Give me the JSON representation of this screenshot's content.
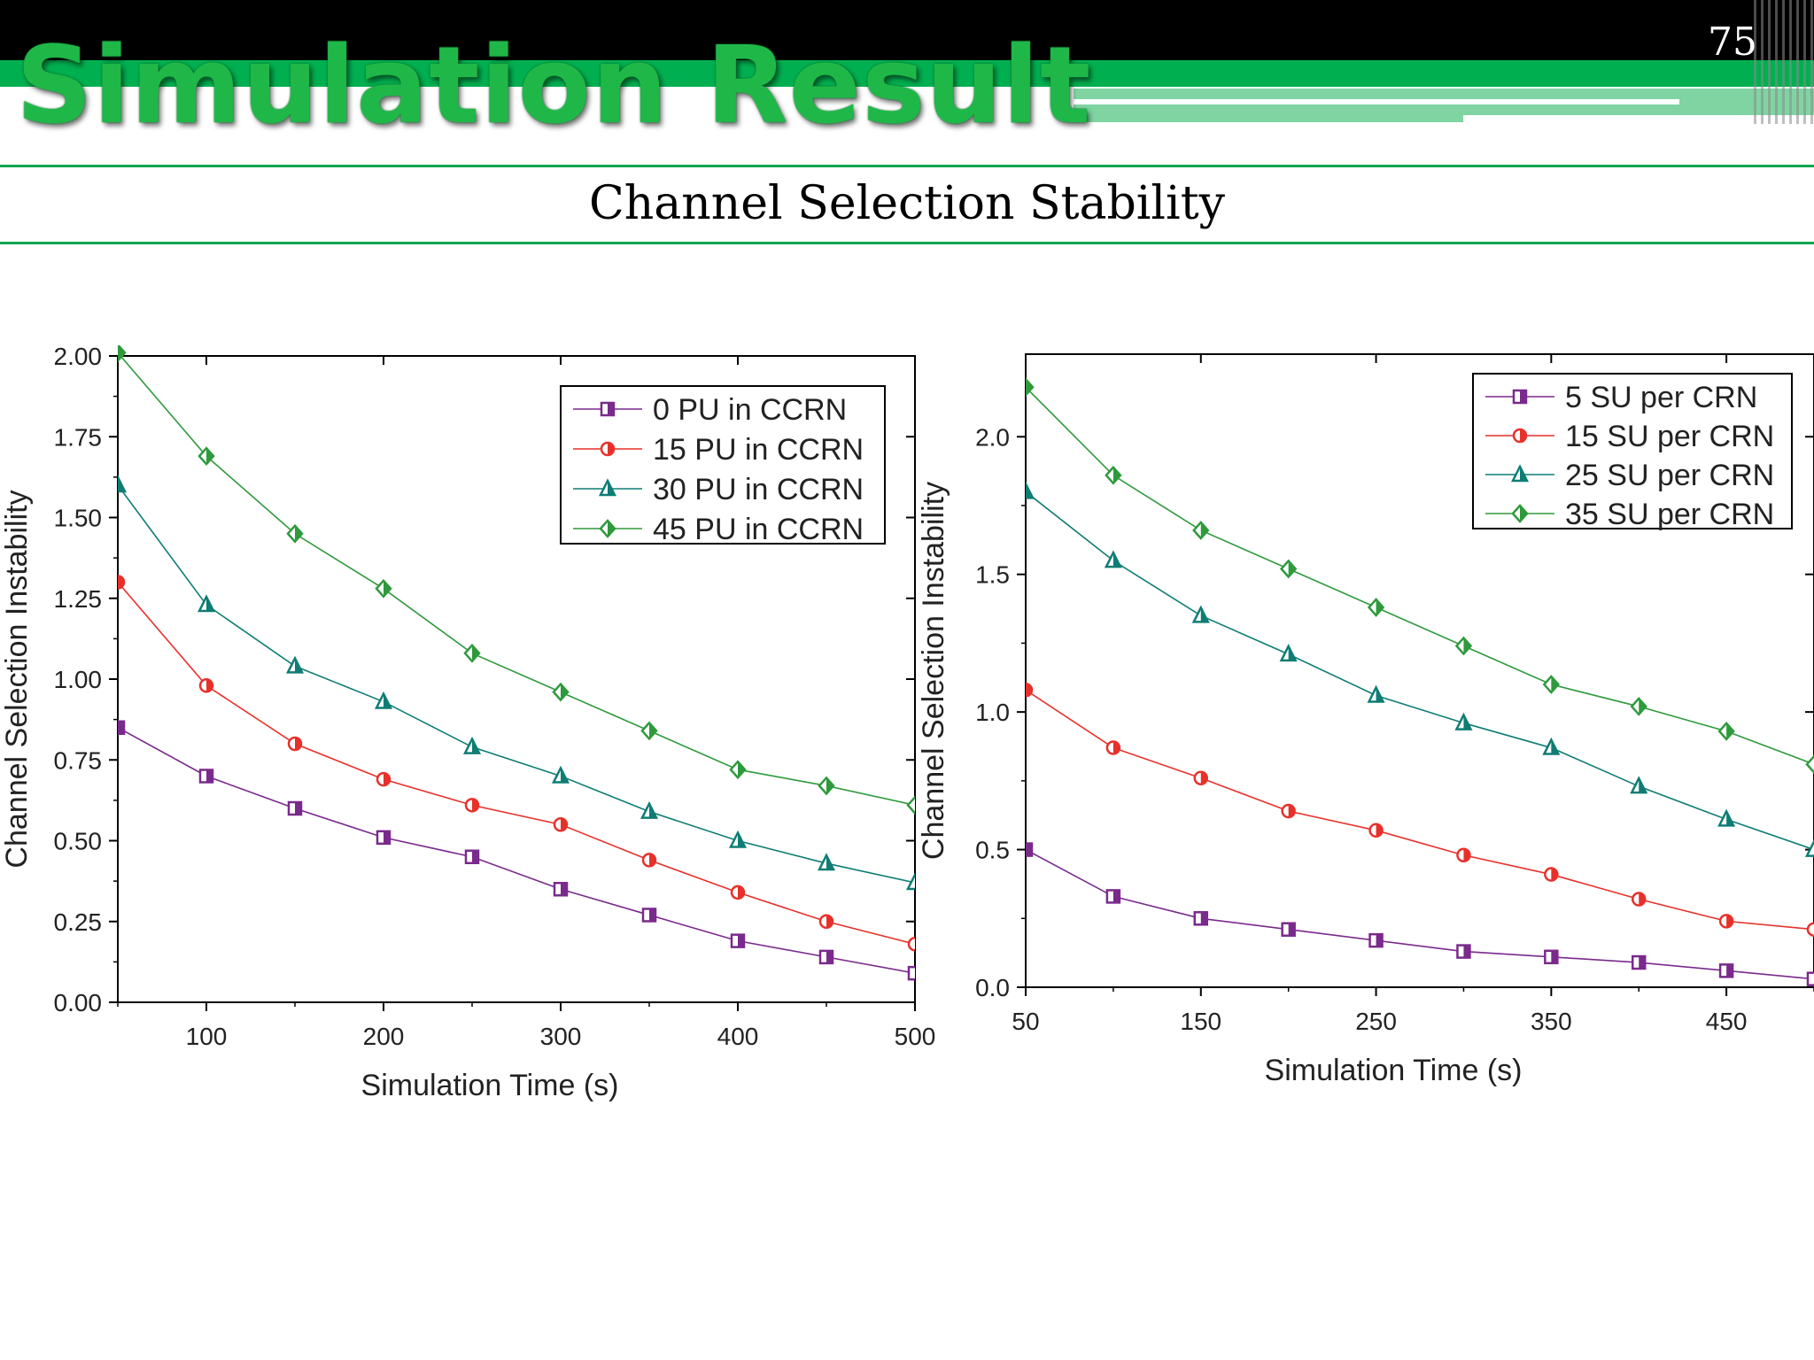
{
  "slide": {
    "title": "Simulation Result",
    "page_number": "75",
    "subtitle": "Channel Selection Stability"
  },
  "colors": {
    "header_black": "#000000",
    "header_green": "#00b050",
    "title_green": "#1fb848",
    "rule_green": "#00a650"
  },
  "chart_data": [
    {
      "type": "line",
      "xlabel": "Simulation Time (s)",
      "ylabel": "Channel Selection Instability",
      "xlim": [
        50,
        500
      ],
      "ylim": [
        0,
        2.0
      ],
      "x_ticks": [
        "100",
        "200",
        "300",
        "400",
        "500"
      ],
      "y_ticks": [
        "0.00",
        "0.25",
        "0.50",
        "0.75",
        "1.00",
        "1.25",
        "1.50",
        "1.75",
        "2.00"
      ],
      "legend_position": "top-right",
      "x": [
        50,
        100,
        150,
        200,
        250,
        300,
        350,
        400,
        450,
        500
      ],
      "series": [
        {
          "name": "0 PU in CCRN",
          "color": "#7a2a8c",
          "marker": "square",
          "values": [
            0.85,
            0.7,
            0.6,
            0.51,
            0.45,
            0.35,
            0.27,
            0.19,
            0.14,
            0.09
          ]
        },
        {
          "name": "15 PU in CCRN",
          "color": "#e8302a",
          "marker": "circle",
          "values": [
            1.3,
            0.98,
            0.8,
            0.69,
            0.61,
            0.55,
            0.44,
            0.34,
            0.25,
            0.18
          ]
        },
        {
          "name": "30 PU in CCRN",
          "color": "#0e7d74",
          "marker": "triangle",
          "values": [
            1.6,
            1.23,
            1.04,
            0.93,
            0.79,
            0.7,
            0.59,
            0.5,
            0.43,
            0.37
          ]
        },
        {
          "name": "45 PU in CCRN",
          "color": "#2e9a3c",
          "marker": "diamond",
          "values": [
            2.01,
            1.69,
            1.45,
            1.28,
            1.08,
            0.96,
            0.84,
            0.72,
            0.67,
            0.61
          ]
        }
      ]
    },
    {
      "type": "line",
      "xlabel": "Simulation Time (s)",
      "ylabel": "Channel Selection Instability",
      "xlim": [
        50,
        500
      ],
      "ylim": [
        0,
        2.3
      ],
      "x_ticks": [
        "50",
        "150",
        "250",
        "350",
        "450"
      ],
      "y_ticks": [
        "0.0",
        "0.5",
        "1.0",
        "1.5",
        "2.0"
      ],
      "legend_position": "top-right",
      "x": [
        50,
        100,
        150,
        200,
        250,
        300,
        350,
        400,
        450,
        500
      ],
      "series": [
        {
          "name": "5 SU per CRN",
          "color": "#7a2a8c",
          "marker": "square",
          "values": [
            0.5,
            0.33,
            0.25,
            0.21,
            0.17,
            0.13,
            0.11,
            0.09,
            0.06,
            0.03
          ]
        },
        {
          "name": "15 SU per CRN",
          "color": "#e8302a",
          "marker": "circle",
          "values": [
            1.08,
            0.87,
            0.76,
            0.64,
            0.57,
            0.48,
            0.41,
            0.32,
            0.24,
            0.21
          ]
        },
        {
          "name": "25 SU per CRN",
          "color": "#0e7d74",
          "marker": "triangle",
          "values": [
            1.8,
            1.55,
            1.35,
            1.21,
            1.06,
            0.96,
            0.87,
            0.73,
            0.61,
            0.5
          ]
        },
        {
          "name": "35 SU per CRN",
          "color": "#2e9a3c",
          "marker": "diamond",
          "values": [
            2.18,
            1.86,
            1.66,
            1.52,
            1.38,
            1.24,
            1.1,
            1.02,
            0.93,
            0.81
          ]
        }
      ]
    }
  ]
}
